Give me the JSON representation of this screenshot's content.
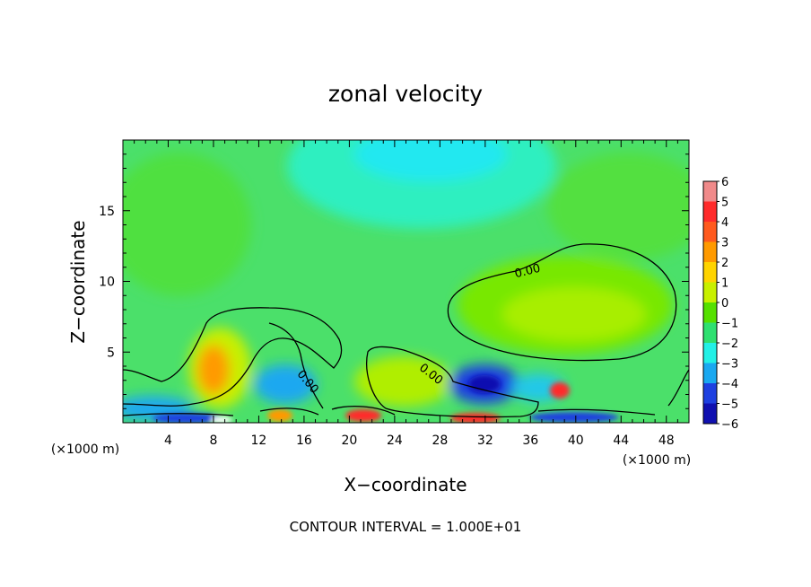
{
  "chart_data": {
    "type": "heatmap",
    "title": "zonal velocity",
    "xlabel": "X−coordinate",
    "ylabel": "Z−coordinate",
    "x_unit_left": "(×1000 m)",
    "x_unit_right": "(×1000 m)",
    "footer": "CONTOUR INTERVAL = 1.000E+01",
    "xlim": [
      0,
      50
    ],
    "ylim": [
      0,
      20
    ],
    "x_ticks": [
      4,
      8,
      12,
      16,
      20,
      24,
      28,
      32,
      36,
      40,
      44,
      48
    ],
    "y_ticks": [
      5,
      10,
      15
    ],
    "grid": false,
    "colorbar": {
      "levels": [
        6,
        5,
        4,
        3,
        2,
        1,
        0,
        -1,
        -2,
        -3,
        -4,
        -5,
        -6
      ],
      "colors": [
        "#f08a8a",
        "#ff2b2b",
        "#ff5a1e",
        "#ff9a00",
        "#ffd400",
        "#c8f000",
        "#55e000",
        "#2ee070",
        "#22f0e6",
        "#1aa8f0",
        "#1e40e0",
        "#1010b0",
        "#6a0aa0"
      ]
    },
    "contour_labels": [
      {
        "text": "0.00",
        "x": 36.5,
        "y": 11.0
      },
      {
        "text": "0.00",
        "x": 26.5,
        "y": 3.6
      },
      {
        "text": "0.00",
        "x": 15.8,
        "y": 3.0
      }
    ],
    "notes": "Filled contours of zonal velocity over the X–Z domain; values in the colorbar are the levels shown."
  }
}
